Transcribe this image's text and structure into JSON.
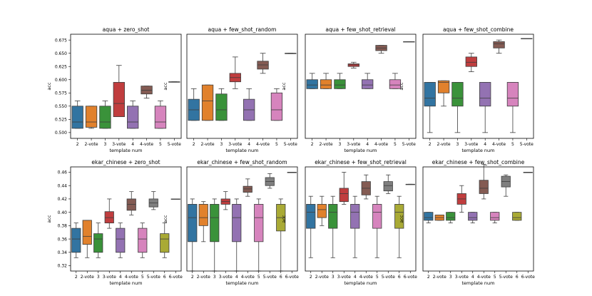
{
  "chart_data": [
    {
      "type": "box",
      "title": "aqua + zero_shot",
      "xlabel": "template num",
      "ylabel": "acc",
      "ylim": [
        0.489,
        0.686
      ],
      "yticks": [
        "0.500",
        "0.525",
        "0.550",
        "0.575",
        "0.600",
        "0.625",
        "0.650",
        "0.675"
      ],
      "categories": [
        "2",
        "2-vote",
        "3",
        "3-vote",
        "4",
        "4-vote",
        "5",
        "5-vote"
      ],
      "boxes": [
        {
          "min": 0.508,
          "q1": 0.508,
          "median": 0.52,
          "q3": 0.55,
          "max": 0.56,
          "color": "#3274a1"
        },
        {
          "min": 0.508,
          "q1": 0.51,
          "median": 0.52,
          "q3": 0.55,
          "max": 0.55,
          "color": "#e1812c"
        },
        {
          "min": 0.508,
          "q1": 0.508,
          "median": 0.52,
          "q3": 0.55,
          "max": 0.56,
          "color": "#3a923a"
        },
        {
          "min": 0.53,
          "q1": 0.53,
          "median": 0.555,
          "q3": 0.595,
          "max": 0.627,
          "color": "#c03d3e"
        },
        {
          "min": 0.508,
          "q1": 0.508,
          "median": 0.52,
          "q3": 0.55,
          "max": 0.56,
          "color": "#9372b2"
        },
        {
          "min": 0.565,
          "q1": 0.573,
          "median": 0.58,
          "q3": 0.588,
          "max": 0.588,
          "color": "#845b53"
        },
        {
          "min": 0.508,
          "q1": 0.508,
          "median": 0.52,
          "q3": 0.55,
          "max": 0.56,
          "color": "#d684bd"
        },
        {
          "min": 0.596,
          "q1": 0.596,
          "median": 0.596,
          "q3": 0.596,
          "max": 0.596,
          "color": "#7f7f7f"
        }
      ]
    },
    {
      "type": "box",
      "title": "aqua + few_shot_random",
      "xlabel": "template num",
      "ylabel": "acc",
      "ylim": [
        0.489,
        0.686
      ],
      "yticks": [],
      "categories": [
        "2",
        "2-vote",
        "3",
        "3-vote",
        "4",
        "4-vote",
        "5",
        "5-vote"
      ],
      "boxes": [
        {
          "min": 0.523,
          "q1": 0.523,
          "median": 0.543,
          "q3": 0.563,
          "max": 0.583,
          "color": "#3274a1"
        },
        {
          "min": 0.523,
          "q1": 0.523,
          "median": 0.56,
          "q3": 0.59,
          "max": 0.59,
          "color": "#e1812c"
        },
        {
          "min": 0.523,
          "q1": 0.523,
          "median": 0.543,
          "q3": 0.573,
          "max": 0.583,
          "color": "#3a923a"
        },
        {
          "min": 0.583,
          "q1": 0.596,
          "median": 0.604,
          "q3": 0.612,
          "max": 0.643,
          "color": "#c03d3e"
        },
        {
          "min": 0.523,
          "q1": 0.523,
          "median": 0.543,
          "q3": 0.563,
          "max": 0.583,
          "color": "#9372b2"
        },
        {
          "min": 0.612,
          "q1": 0.62,
          "median": 0.628,
          "q3": 0.635,
          "max": 0.65,
          "color": "#845b53"
        },
        {
          "min": 0.523,
          "q1": 0.523,
          "median": 0.543,
          "q3": 0.575,
          "max": 0.583,
          "color": "#d684bd"
        },
        {
          "min": 0.65,
          "q1": 0.65,
          "median": 0.65,
          "q3": 0.65,
          "max": 0.65,
          "color": "#7f7f7f"
        }
      ]
    },
    {
      "type": "box",
      "title": "aqua + few_shot_retrieval",
      "xlabel": "template num",
      "ylabel": "acc",
      "ylim": [
        0.489,
        0.686
      ],
      "yticks": [],
      "categories": [
        "2",
        "2-vote",
        "3",
        "3-vote",
        "4",
        "4-vote",
        "5",
        "5-vote"
      ],
      "boxes": [
        {
          "min": 0.583,
          "q1": 0.583,
          "median": 0.59,
          "q3": 0.6,
          "max": 0.612,
          "color": "#3274a1"
        },
        {
          "min": 0.583,
          "q1": 0.583,
          "median": 0.59,
          "q3": 0.6,
          "max": 0.612,
          "color": "#e1812c"
        },
        {
          "min": 0.583,
          "q1": 0.583,
          "median": 0.59,
          "q3": 0.6,
          "max": 0.612,
          "color": "#3a923a"
        },
        {
          "min": 0.622,
          "q1": 0.625,
          "median": 0.628,
          "q3": 0.63,
          "max": 0.633,
          "color": "#c03d3e"
        },
        {
          "min": 0.583,
          "q1": 0.583,
          "median": 0.59,
          "q3": 0.6,
          "max": 0.612,
          "color": "#9372b2"
        },
        {
          "min": 0.65,
          "q1": 0.655,
          "median": 0.66,
          "q3": 0.665,
          "max": 0.665,
          "color": "#845b53"
        },
        {
          "min": 0.583,
          "q1": 0.583,
          "median": 0.59,
          "q3": 0.6,
          "max": 0.612,
          "color": "#d684bd"
        },
        {
          "min": 0.672,
          "q1": 0.672,
          "median": 0.672,
          "q3": 0.672,
          "max": 0.672,
          "color": "#7f7f7f"
        }
      ]
    },
    {
      "type": "box",
      "title": "aqua + few_shot_combine",
      "xlabel": "template num",
      "ylabel": "acc",
      "ylim": [
        0.489,
        0.686
      ],
      "yticks": [],
      "categories": [
        "2",
        "2-vote",
        "3",
        "3-vote",
        "4",
        "4-vote",
        "5",
        "5-vote"
      ],
      "boxes": [
        {
          "min": 0.5,
          "q1": 0.55,
          "median": 0.565,
          "q3": 0.595,
          "max": 0.595,
          "color": "#3274a1"
        },
        {
          "min": 0.55,
          "q1": 0.575,
          "median": 0.595,
          "q3": 0.598,
          "max": 0.598,
          "color": "#e1812c"
        },
        {
          "min": 0.5,
          "q1": 0.55,
          "median": 0.565,
          "q3": 0.595,
          "max": 0.595,
          "color": "#3a923a"
        },
        {
          "min": 0.615,
          "q1": 0.625,
          "median": 0.633,
          "q3": 0.643,
          "max": 0.65,
          "color": "#c03d3e"
        },
        {
          "min": 0.5,
          "q1": 0.55,
          "median": 0.565,
          "q3": 0.595,
          "max": 0.595,
          "color": "#9372b2"
        },
        {
          "min": 0.65,
          "q1": 0.66,
          "median": 0.668,
          "q3": 0.672,
          "max": 0.675,
          "color": "#845b53"
        },
        {
          "min": 0.5,
          "q1": 0.55,
          "median": 0.565,
          "q3": 0.595,
          "max": 0.595,
          "color": "#d684bd"
        },
        {
          "min": 0.678,
          "q1": 0.678,
          "median": 0.678,
          "q3": 0.678,
          "max": 0.678,
          "color": "#7f7f7f"
        }
      ]
    },
    {
      "type": "box",
      "title": "ekar_chinese + zero_shot",
      "xlabel": "template num",
      "ylabel": "acc",
      "ylim": [
        0.312,
        0.468
      ],
      "yticks": [
        "0.32",
        "0.34",
        "0.36",
        "0.38",
        "0.40",
        "0.42",
        "0.44",
        "0.46"
      ],
      "categories": [
        "2",
        "2-vote",
        "3",
        "3-vote",
        "4",
        "4-vote",
        "5",
        "5-vote",
        "6",
        "6-vote"
      ],
      "boxes": [
        {
          "min": 0.332,
          "q1": 0.34,
          "median": 0.36,
          "q3": 0.376,
          "max": 0.384,
          "color": "#3274a1"
        },
        {
          "min": 0.332,
          "q1": 0.352,
          "median": 0.364,
          "q3": 0.388,
          "max": 0.388,
          "color": "#e1812c"
        },
        {
          "min": 0.332,
          "q1": 0.34,
          "median": 0.36,
          "q3": 0.368,
          "max": 0.384,
          "color": "#3a923a"
        },
        {
          "min": 0.376,
          "q1": 0.384,
          "median": 0.392,
          "q3": 0.401,
          "max": 0.42,
          "color": "#c03d3e"
        },
        {
          "min": 0.332,
          "q1": 0.34,
          "median": 0.36,
          "q3": 0.376,
          "max": 0.384,
          "color": "#9372b2"
        },
        {
          "min": 0.396,
          "q1": 0.403,
          "median": 0.412,
          "q3": 0.42,
          "max": 0.431,
          "color": "#845b53"
        },
        {
          "min": 0.332,
          "q1": 0.34,
          "median": 0.36,
          "q3": 0.376,
          "max": 0.384,
          "color": "#d684bd"
        },
        {
          "min": 0.404,
          "q1": 0.408,
          "median": 0.414,
          "q3": 0.42,
          "max": 0.431,
          "color": "#7f7f7f"
        },
        {
          "min": 0.332,
          "q1": 0.34,
          "median": 0.36,
          "q3": 0.368,
          "max": 0.384,
          "color": "#a9aa35"
        },
        {
          "min": 0.42,
          "q1": 0.42,
          "median": 0.42,
          "q3": 0.42,
          "max": 0.42,
          "color": "#2eb7c4"
        }
      ]
    },
    {
      "type": "box",
      "title": "ekar_chinese + few_shot_random",
      "xlabel": "template num",
      "ylabel": "acc",
      "ylim": [
        0.312,
        0.468
      ],
      "yticks": [],
      "categories": [
        "2",
        "2-vote",
        "3",
        "3-vote",
        "4",
        "4-vote",
        "5",
        "5-vote",
        "6",
        "6-vote"
      ],
      "boxes": [
        {
          "min": 0.312,
          "q1": 0.356,
          "median": 0.392,
          "q3": 0.412,
          "max": 0.42,
          "color": "#3274a1"
        },
        {
          "min": 0.356,
          "q1": 0.38,
          "median": 0.392,
          "q3": 0.412,
          "max": 0.416,
          "color": "#e1812c"
        },
        {
          "min": 0.312,
          "q1": 0.356,
          "median": 0.392,
          "q3": 0.412,
          "max": 0.42,
          "color": "#3a923a"
        },
        {
          "min": 0.404,
          "q1": 0.412,
          "median": 0.416,
          "q3": 0.42,
          "max": 0.431,
          "color": "#c03d3e"
        },
        {
          "min": 0.312,
          "q1": 0.356,
          "median": 0.392,
          "q3": 0.412,
          "max": 0.42,
          "color": "#9372b2"
        },
        {
          "min": 0.424,
          "q1": 0.43,
          "median": 0.435,
          "q3": 0.439,
          "max": 0.45,
          "color": "#845b53"
        },
        {
          "min": 0.312,
          "q1": 0.356,
          "median": 0.392,
          "q3": 0.412,
          "max": 0.42,
          "color": "#d684bd"
        },
        {
          "min": 0.436,
          "q1": 0.44,
          "median": 0.446,
          "q3": 0.452,
          "max": 0.458,
          "color": "#7f7f7f"
        },
        {
          "min": 0.312,
          "q1": 0.372,
          "median": 0.392,
          "q3": 0.412,
          "max": 0.42,
          "color": "#a9aa35"
        },
        {
          "min": 0.46,
          "q1": 0.46,
          "median": 0.46,
          "q3": 0.46,
          "max": 0.46,
          "color": "#2eb7c4"
        }
      ]
    },
    {
      "type": "box",
      "title": "ekar_chinese + few_shot_retrieval",
      "xlabel": "template num",
      "ylabel": "acc",
      "ylim": [
        0.312,
        0.468
      ],
      "yticks": [],
      "categories": [
        "2",
        "2-vote",
        "3",
        "3-vote",
        "4",
        "4-vote",
        "5",
        "5-vote",
        "6",
        "6-vote"
      ],
      "boxes": [
        {
          "min": 0.332,
          "q1": 0.376,
          "median": 0.4,
          "q3": 0.412,
          "max": 0.424,
          "color": "#3274a1"
        },
        {
          "min": 0.38,
          "q1": 0.392,
          "median": 0.404,
          "q3": 0.412,
          "max": 0.424,
          "color": "#e1812c"
        },
        {
          "min": 0.332,
          "q1": 0.376,
          "median": 0.4,
          "q3": 0.412,
          "max": 0.424,
          "color": "#3a923a"
        },
        {
          "min": 0.412,
          "q1": 0.416,
          "median": 0.428,
          "q3": 0.436,
          "max": 0.46,
          "color": "#c03d3e"
        },
        {
          "min": 0.332,
          "q1": 0.376,
          "median": 0.4,
          "q3": 0.412,
          "max": 0.424,
          "color": "#9372b2"
        },
        {
          "min": 0.42,
          "q1": 0.426,
          "median": 0.436,
          "q3": 0.446,
          "max": 0.456,
          "color": "#845b53"
        },
        {
          "min": 0.332,
          "q1": 0.376,
          "median": 0.4,
          "q3": 0.412,
          "max": 0.424,
          "color": "#d684bd"
        },
        {
          "min": 0.428,
          "q1": 0.432,
          "median": 0.44,
          "q3": 0.446,
          "max": 0.456,
          "color": "#7f7f7f"
        },
        {
          "min": 0.332,
          "q1": 0.376,
          "median": 0.4,
          "q3": 0.412,
          "max": 0.424,
          "color": "#a9aa35"
        },
        {
          "min": 0.442,
          "q1": 0.442,
          "median": 0.442,
          "q3": 0.442,
          "max": 0.442,
          "color": "#2eb7c4"
        }
      ]
    },
    {
      "type": "box",
      "title": "ekar_chinese + few_shot_combine",
      "xlabel": "template num",
      "ylabel": "acc",
      "ylim": [
        0.312,
        0.468
      ],
      "yticks": [],
      "categories": [
        "2",
        "2-vote",
        "3",
        "3-vote",
        "4",
        "4-vote",
        "5",
        "5-vote",
        "6",
        "6-vote"
      ],
      "boxes": [
        {
          "min": 0.384,
          "q1": 0.388,
          "median": 0.392,
          "q3": 0.4,
          "max": 0.4,
          "color": "#3274a1"
        },
        {
          "min": 0.388,
          "q1": 0.388,
          "median": 0.392,
          "q3": 0.396,
          "max": 0.396,
          "color": "#e1812c"
        },
        {
          "min": 0.384,
          "q1": 0.388,
          "median": 0.392,
          "q3": 0.4,
          "max": 0.4,
          "color": "#3a923a"
        },
        {
          "min": 0.4,
          "q1": 0.412,
          "median": 0.42,
          "q3": 0.428,
          "max": 0.44,
          "color": "#c03d3e"
        },
        {
          "min": 0.384,
          "q1": 0.388,
          "median": 0.392,
          "q3": 0.4,
          "max": 0.4,
          "color": "#9372b2"
        },
        {
          "min": 0.42,
          "q1": 0.428,
          "median": 0.436,
          "q3": 0.448,
          "max": 0.472,
          "color": "#845b53"
        },
        {
          "min": 0.384,
          "q1": 0.388,
          "median": 0.392,
          "q3": 0.4,
          "max": 0.4,
          "color": "#d684bd"
        },
        {
          "min": 0.424,
          "q1": 0.438,
          "median": 0.446,
          "q3": 0.454,
          "max": 0.456,
          "color": "#7f7f7f"
        },
        {
          "min": 0.388,
          "q1": 0.388,
          "median": 0.392,
          "q3": 0.4,
          "max": 0.4,
          "color": "#a9aa35"
        },
        {
          "min": 0.46,
          "q1": 0.46,
          "median": 0.46,
          "q3": 0.46,
          "max": 0.46,
          "color": "#2eb7c4"
        }
      ]
    }
  ]
}
